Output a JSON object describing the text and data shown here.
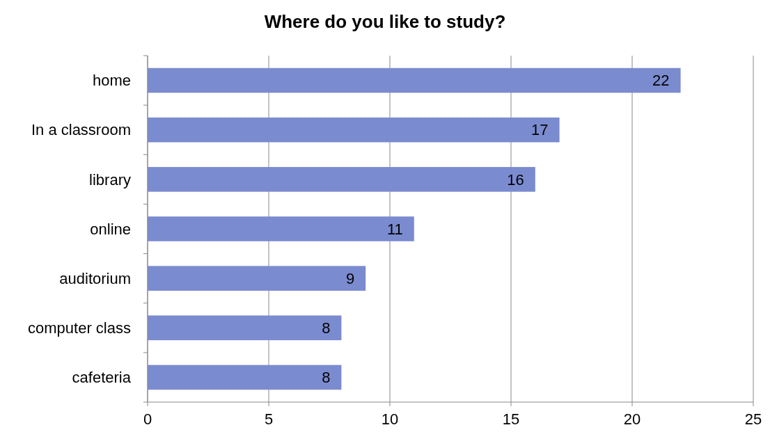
{
  "chart_data": {
    "type": "bar",
    "orientation": "horizontal",
    "title": "Where do you like to study?",
    "categories": [
      "home",
      "In a classroom",
      "library",
      "online",
      "auditorium",
      "computer class",
      "cafeteria"
    ],
    "values": [
      22,
      17,
      16,
      11,
      9,
      8,
      8
    ],
    "color": "#7b8bcf",
    "xlim": [
      0,
      25
    ],
    "xticks": [
      0,
      5,
      10,
      15,
      20,
      25
    ],
    "grid": "x",
    "data_labels": true
  }
}
